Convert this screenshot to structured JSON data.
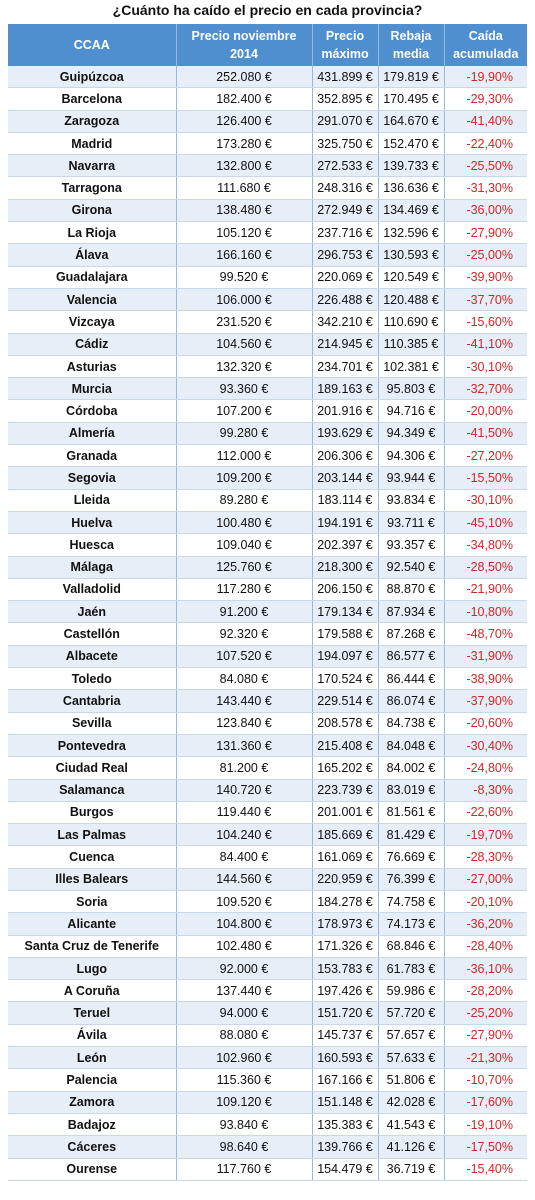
{
  "title": "¿Cuánto ha caído el precio en cada provincia?",
  "headers": {
    "ccaa": "CCAA",
    "precio_nov_1": "Precio noviembre",
    "precio_nov_2": "2014",
    "precio_max_1": "Precio",
    "precio_max_2": "máximo",
    "rebaja_1": "Rebaja",
    "rebaja_2": "media",
    "caida_1": "Caída",
    "caida_2": "acumulada"
  },
  "colors": {
    "header_bg": "#4f8fd0",
    "row_alt": "#e6eef8",
    "negative": "#d42525"
  },
  "rows": [
    [
      "Guipúzcoa",
      "252.080 €",
      "431.899 €",
      "179.819 €",
      "-19,90%"
    ],
    [
      "Barcelona",
      "182.400 €",
      "352.895 €",
      "170.495 €",
      "-29,30%"
    ],
    [
      "Zaragoza",
      "126.400 €",
      "291.070 €",
      "164.670 €",
      "-41,40%"
    ],
    [
      "Madrid",
      "173.280 €",
      "325.750 €",
      "152.470 €",
      "-22,40%"
    ],
    [
      "Navarra",
      "132.800 €",
      "272.533 €",
      "139.733 €",
      "-25,50%"
    ],
    [
      "Tarragona",
      "111.680 €",
      "248.316 €",
      "136.636 €",
      "-31,30%"
    ],
    [
      "Girona",
      "138.480 €",
      "272.949 €",
      "134.469 €",
      "-36,00%"
    ],
    [
      "La Rioja",
      "105.120 €",
      "237.716 €",
      "132.596 €",
      "-27,90%"
    ],
    [
      "Álava",
      "166.160 €",
      "296.753 €",
      "130.593 €",
      "-25,00%"
    ],
    [
      "Guadalajara",
      "99.520 €",
      "220.069 €",
      "120.549 €",
      "-39,90%"
    ],
    [
      "Valencia",
      "106.000 €",
      "226.488 €",
      "120.488 €",
      "-37,70%"
    ],
    [
      "Vizcaya",
      "231.520 €",
      "342.210 €",
      "110.690 €",
      "-15,60%"
    ],
    [
      "Cádiz",
      "104.560 €",
      "214.945 €",
      "110.385 €",
      "-41,10%"
    ],
    [
      "Asturias",
      "132.320 €",
      "234.701 €",
      "102.381 €",
      "-30,10%"
    ],
    [
      "Murcia",
      "93.360 €",
      "189.163 €",
      "95.803 €",
      "-32,70%"
    ],
    [
      "Córdoba",
      "107.200 €",
      "201.916 €",
      "94.716 €",
      "-20,00%"
    ],
    [
      "Almería",
      "99.280 €",
      "193.629 €",
      "94.349 €",
      "-41,50%"
    ],
    [
      "Granada",
      "112.000 €",
      "206.306 €",
      "94.306 €",
      "-27,20%"
    ],
    [
      "Segovia",
      "109.200 €",
      "203.144 €",
      "93.944 €",
      "-15,50%"
    ],
    [
      "Lleida",
      "89.280 €",
      "183.114 €",
      "93.834 €",
      "-30,10%"
    ],
    [
      "Huelva",
      "100.480 €",
      "194.191 €",
      "93.711 €",
      "-45,10%"
    ],
    [
      "Huesca",
      "109.040 €",
      "202.397 €",
      "93.357 €",
      "-34,80%"
    ],
    [
      "Málaga",
      "125.760 €",
      "218.300 €",
      "92.540 €",
      "-28,50%"
    ],
    [
      "Valladolid",
      "117.280 €",
      "206.150 €",
      "88.870 €",
      "-21,90%"
    ],
    [
      "Jaén",
      "91.200 €",
      "179.134 €",
      "87.934 €",
      "-10,80%"
    ],
    [
      "Castellón",
      "92.320 €",
      "179.588 €",
      "87.268 €",
      "-48,70%"
    ],
    [
      "Albacete",
      "107.520 €",
      "194.097 €",
      "86.577 €",
      "-31,90%"
    ],
    [
      "Toledo",
      "84.080 €",
      "170.524 €",
      "86.444 €",
      "-38,90%"
    ],
    [
      "Cantabria",
      "143.440 €",
      "229.514 €",
      "86.074 €",
      "-37,90%"
    ],
    [
      "Sevilla",
      "123.840 €",
      "208.578 €",
      "84.738 €",
      "-20,60%"
    ],
    [
      "Pontevedra",
      "131.360 €",
      "215.408 €",
      "84.048 €",
      "-30,40%"
    ],
    [
      "Ciudad Real",
      "81.200 €",
      "165.202 €",
      "84.002 €",
      "-24,80%"
    ],
    [
      "Salamanca",
      "140.720 €",
      "223.739 €",
      "83.019 €",
      "-8,30%"
    ],
    [
      "Burgos",
      "119.440 €",
      "201.001 €",
      "81.561 €",
      "-22,60%"
    ],
    [
      "Las Palmas",
      "104.240 €",
      "185.669 €",
      "81.429 €",
      "-19,70%"
    ],
    [
      "Cuenca",
      "84.400 €",
      "161.069 €",
      "76.669 €",
      "-28,30%"
    ],
    [
      "Illes Balears",
      "144.560 €",
      "220.959 €",
      "76.399 €",
      "-27,00%"
    ],
    [
      "Soria",
      "109.520 €",
      "184.278 €",
      "74.758 €",
      "-20,10%"
    ],
    [
      "Alicante",
      "104.800 €",
      "178.973 €",
      "74.173 €",
      "-36,20%"
    ],
    [
      "Santa Cruz de Tenerife",
      "102.480 €",
      "171.326 €",
      "68.846 €",
      "-28,40%"
    ],
    [
      "Lugo",
      "92.000 €",
      "153.783 €",
      "61.783 €",
      "-36,10%"
    ],
    [
      "A Coruña",
      "137.440 €",
      "197.426 €",
      "59.986 €",
      "-28,20%"
    ],
    [
      "Teruel",
      "94.000 €",
      "151.720 €",
      "57.720 €",
      "-25,20%"
    ],
    [
      "Ávila",
      "88.080 €",
      "145.737 €",
      "57.657 €",
      "-27,90%"
    ],
    [
      "León",
      "102.960 €",
      "160.593 €",
      "57.633 €",
      "-21,30%"
    ],
    [
      "Palencia",
      "115.360 €",
      "167.166 €",
      "51.806 €",
      "-10,70%"
    ],
    [
      "Zamora",
      "109.120 €",
      "151.148 €",
      "42.028 €",
      "-17,60%"
    ],
    [
      "Badajoz",
      "93.840 €",
      "135.383 €",
      "41.543 €",
      "-19,10%"
    ],
    [
      "Cáceres",
      "98.640 €",
      "139.766 €",
      "41.126 €",
      "-17,50%"
    ],
    [
      "Ourense",
      "117.760 €",
      "154.479 €",
      "36.719 €",
      "-15,40%"
    ]
  ]
}
